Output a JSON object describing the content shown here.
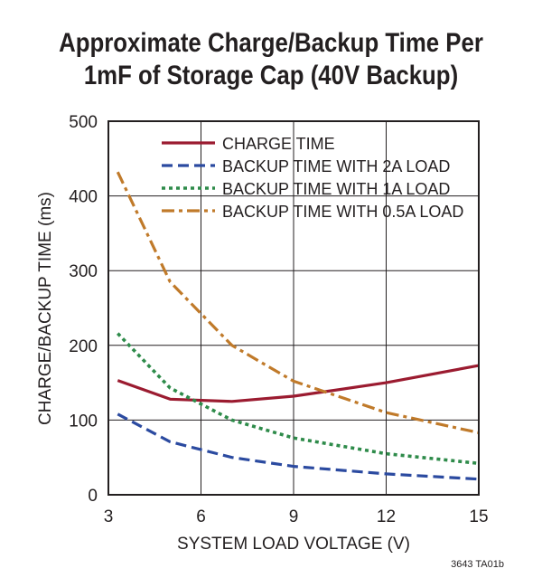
{
  "chart_data": {
    "type": "line",
    "title_lines": [
      "Approximate Charge/Backup Time Per",
      "1mF of Storage Cap (40V Backup)"
    ],
    "xlabel": "SYSTEM LOAD VOLTAGE (V)",
    "ylabel": "CHARGE/BACKUP TIME (ms)",
    "xlim": [
      3,
      15
    ],
    "ylim": [
      0,
      500
    ],
    "xticks": [
      3,
      6,
      9,
      12,
      15
    ],
    "yticks": [
      0,
      100,
      200,
      300,
      400,
      500
    ],
    "grid": true,
    "legend_position": "top-right",
    "footnote": "3643 TA01b",
    "series": [
      {
        "name": "CHARGE TIME",
        "color": "#9b1b30",
        "dash": "solid",
        "x": [
          3.3,
          5,
          7,
          9,
          12,
          15
        ],
        "y": [
          153,
          128,
          125,
          132,
          150,
          173
        ]
      },
      {
        "name": "BACKUP TIME WITH 2A LOAD",
        "color": "#2b4aa0",
        "dash": "dashed",
        "x": [
          3.3,
          5,
          7,
          9,
          12,
          15
        ],
        "y": [
          108,
          71,
          50,
          38,
          28,
          21
        ]
      },
      {
        "name": "BACKUP TIME WITH 1A LOAD",
        "color": "#2e8b4a",
        "dash": "dotted",
        "x": [
          3.3,
          5,
          7,
          9,
          12,
          15
        ],
        "y": [
          216,
          143,
          100,
          76,
          55,
          42
        ]
      },
      {
        "name": "BACKUP TIME WITH 0.5A LOAD",
        "color": "#c07a2a",
        "dash": "dashdot",
        "x": [
          3.3,
          5,
          7,
          9,
          12,
          15
        ],
        "y": [
          432,
          285,
          200,
          152,
          110,
          83
        ]
      }
    ]
  }
}
